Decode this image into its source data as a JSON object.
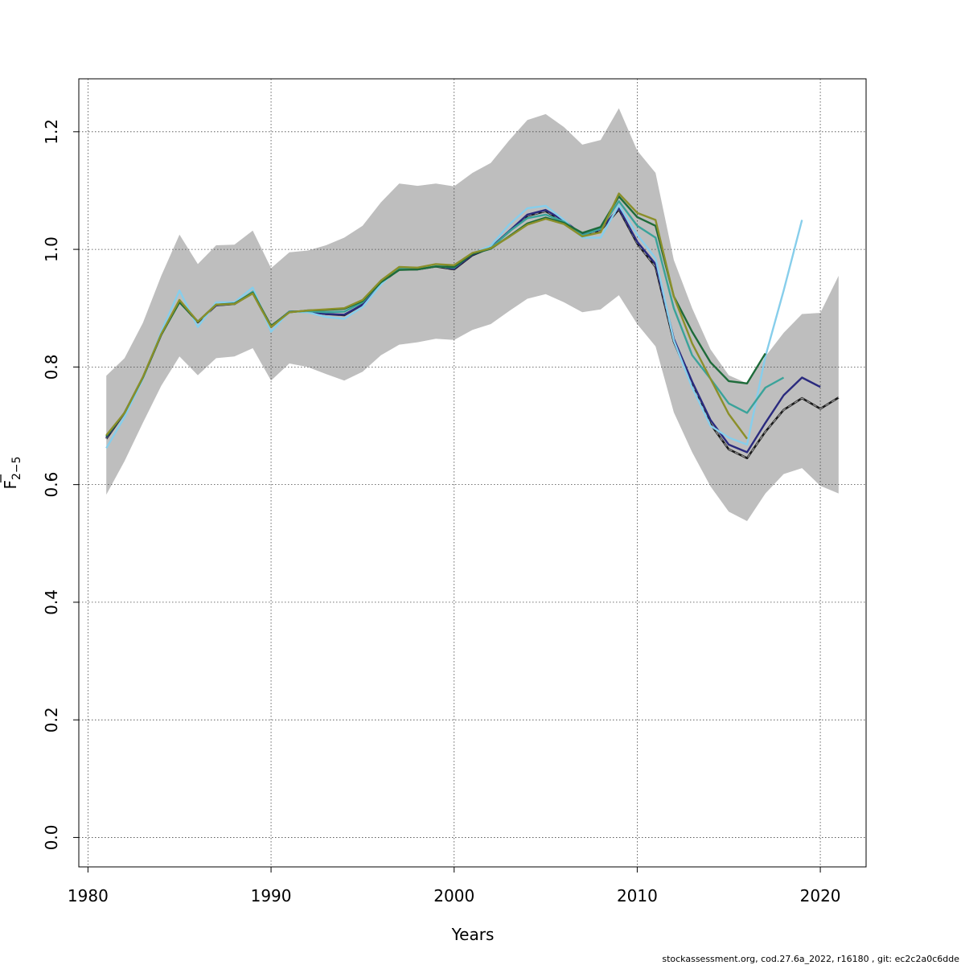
{
  "chart_data": {
    "type": "line",
    "xlabel": "Years",
    "ylabel_main": "F",
    "ylabel_sub": "2−5",
    "xlim": [
      1979.5,
      2022.5
    ],
    "ylim": [
      -0.05,
      1.29
    ],
    "xticks": [
      1980,
      1990,
      2000,
      2010,
      2020
    ],
    "yticks": [
      0.0,
      0.2,
      0.4,
      0.6,
      0.8,
      1.0,
      1.2
    ],
    "ytick_labels": [
      "0.0",
      "0.2",
      "0.4",
      "0.6",
      "0.8",
      "1.0",
      "1.2"
    ],
    "grid": true,
    "band_color": "#bebebe",
    "confidence_band": {
      "x": [
        1981,
        1982,
        1983,
        1984,
        1985,
        1986,
        1987,
        1988,
        1989,
        1990,
        1991,
        1992,
        1993,
        1994,
        1995,
        1996,
        1997,
        1998,
        1999,
        2000,
        2001,
        2002,
        2003,
        2004,
        2005,
        2006,
        2007,
        2008,
        2009,
        2010,
        2011,
        2012,
        2013,
        2014,
        2015,
        2016,
        2017,
        2018,
        2019,
        2020,
        2021
      ],
      "upper": [
        0.785,
        0.815,
        0.875,
        0.955,
        1.025,
        0.975,
        1.007,
        1.008,
        1.032,
        0.968,
        0.995,
        0.998,
        1.007,
        1.02,
        1.04,
        1.08,
        1.112,
        1.108,
        1.112,
        1.107,
        1.13,
        1.147,
        1.185,
        1.22,
        1.23,
        1.208,
        1.178,
        1.186,
        1.24,
        1.168,
        1.13,
        0.982,
        0.9,
        0.83,
        0.786,
        0.772,
        0.818,
        0.858,
        0.89,
        0.892,
        0.955
      ],
      "lower": [
        0.583,
        0.64,
        0.705,
        0.768,
        0.818,
        0.786,
        0.815,
        0.818,
        0.832,
        0.777,
        0.806,
        0.8,
        0.788,
        0.777,
        0.792,
        0.82,
        0.838,
        0.842,
        0.848,
        0.846,
        0.863,
        0.873,
        0.895,
        0.916,
        0.924,
        0.91,
        0.893,
        0.898,
        0.922,
        0.873,
        0.835,
        0.723,
        0.655,
        0.597,
        0.554,
        0.538,
        0.585,
        0.618,
        0.628,
        0.598,
        0.585
      ]
    },
    "series": [
      {
        "color": "#333333",
        "dashed": true,
        "x": [
          1981,
          1982,
          1983,
          1984,
          1985,
          1986,
          1987,
          1988,
          1989,
          1990,
          1991,
          1992,
          1993,
          1994,
          1995,
          1996,
          1997,
          1998,
          1999,
          2000,
          2001,
          2002,
          2003,
          2004,
          2005,
          2006,
          2007,
          2008,
          2009,
          2010,
          2011,
          2012,
          2013,
          2014,
          2015,
          2016,
          2017,
          2018,
          2019,
          2020,
          2021
        ],
        "values": [
          0.678,
          0.722,
          0.782,
          0.855,
          0.912,
          0.876,
          0.905,
          0.907,
          0.926,
          0.868,
          0.894,
          0.894,
          0.89,
          0.888,
          0.906,
          0.943,
          0.966,
          0.966,
          0.971,
          0.966,
          0.99,
          1.003,
          1.03,
          1.057,
          1.065,
          1.047,
          1.023,
          1.032,
          1.068,
          1.01,
          0.97,
          0.843,
          0.77,
          0.703,
          0.66,
          0.645,
          0.69,
          0.727,
          0.747,
          0.729,
          0.748
        ]
      },
      {
        "color": "#2a2a7e",
        "dashed": false,
        "x": [
          1981,
          1982,
          1983,
          1984,
          1985,
          1986,
          1987,
          1988,
          1989,
          1990,
          1991,
          1992,
          1993,
          1994,
          1995,
          1996,
          1997,
          1998,
          1999,
          2000,
          2001,
          2002,
          2003,
          2004,
          2005,
          2006,
          2007,
          2008,
          2009,
          2010,
          2011,
          2012,
          2013,
          2014,
          2015,
          2016,
          2017,
          2018,
          2019,
          2020
        ],
        "values": [
          0.68,
          0.722,
          0.782,
          0.855,
          0.913,
          0.877,
          0.905,
          0.907,
          0.927,
          0.869,
          0.894,
          0.894,
          0.89,
          0.889,
          0.906,
          0.944,
          0.966,
          0.967,
          0.972,
          0.967,
          0.991,
          1.003,
          1.031,
          1.059,
          1.067,
          1.049,
          1.025,
          1.034,
          1.07,
          1.013,
          0.975,
          0.848,
          0.775,
          0.71,
          0.668,
          0.655,
          0.705,
          0.752,
          0.782,
          0.766
        ]
      },
      {
        "color": "#87ceeb",
        "dashed": false,
        "x": [
          1981,
          1982,
          1983,
          1984,
          1985,
          1986,
          1987,
          1988,
          1989,
          1990,
          1991,
          1992,
          1993,
          1994,
          1995,
          1996,
          1997,
          1998,
          1999,
          2000,
          2001,
          2002,
          2003,
          2004,
          2005,
          2006,
          2007,
          2008,
          2009,
          2010,
          2011,
          2012,
          2013,
          2014,
          2015,
          2016,
          2017,
          2018,
          2019
        ],
        "values": [
          0.662,
          0.715,
          0.78,
          0.86,
          0.93,
          0.868,
          0.91,
          0.91,
          0.935,
          0.86,
          0.894,
          0.893,
          0.885,
          0.882,
          0.902,
          0.94,
          0.97,
          0.968,
          0.972,
          0.97,
          0.993,
          1.006,
          1.042,
          1.07,
          1.074,
          1.05,
          1.02,
          1.02,
          1.075,
          1.025,
          0.985,
          0.845,
          0.765,
          0.7,
          0.68,
          0.668,
          0.818,
          0.93,
          1.05
        ]
      },
      {
        "color": "#3aa39a",
        "dashed": false,
        "x": [
          1981,
          1982,
          1983,
          1984,
          1985,
          1986,
          1987,
          1988,
          1989,
          1990,
          1991,
          1992,
          1993,
          1994,
          1995,
          1996,
          1997,
          1998,
          1999,
          2000,
          2001,
          2002,
          2003,
          2004,
          2005,
          2006,
          2007,
          2008,
          2009,
          2010,
          2011,
          2012,
          2013,
          2014,
          2015,
          2016,
          2017,
          2018
        ],
        "values": [
          0.682,
          0.722,
          0.782,
          0.855,
          0.912,
          0.877,
          0.906,
          0.907,
          0.928,
          0.869,
          0.894,
          0.895,
          0.893,
          0.894,
          0.91,
          0.944,
          0.967,
          0.966,
          0.971,
          0.969,
          0.993,
          1.002,
          1.03,
          1.053,
          1.059,
          1.047,
          1.024,
          1.035,
          1.082,
          1.04,
          1.02,
          0.9,
          0.82,
          0.78,
          0.738,
          0.722,
          0.765,
          0.782
        ]
      },
      {
        "color": "#1e6b3a",
        "dashed": false,
        "x": [
          1981,
          1982,
          1983,
          1984,
          1985,
          1986,
          1987,
          1988,
          1989,
          1990,
          1991,
          1992,
          1993,
          1994,
          1995,
          1996,
          1997,
          1998,
          1999,
          2000,
          2001,
          2002,
          2003,
          2004,
          2005,
          2006,
          2007,
          2008,
          2009,
          2010,
          2011,
          2012,
          2013,
          2014,
          2015,
          2016,
          2017
        ],
        "values": [
          0.682,
          0.722,
          0.782,
          0.855,
          0.91,
          0.877,
          0.906,
          0.908,
          0.926,
          0.87,
          0.893,
          0.896,
          0.897,
          0.899,
          0.912,
          0.944,
          0.965,
          0.966,
          0.971,
          0.97,
          0.992,
          1.001,
          1.022,
          1.044,
          1.054,
          1.045,
          1.028,
          1.038,
          1.09,
          1.055,
          1.04,
          0.92,
          0.86,
          0.808,
          0.776,
          0.772,
          0.823
        ]
      },
      {
        "color": "#8b8f2a",
        "dashed": false,
        "x": [
          1981,
          1982,
          1983,
          1984,
          1985,
          1986,
          1987,
          1988,
          1989,
          1990,
          1991,
          1992,
          1993,
          1994,
          1995,
          1996,
          1997,
          1998,
          1999,
          2000,
          2001,
          2002,
          2003,
          2004,
          2005,
          2006,
          2007,
          2008,
          2009,
          2010,
          2011,
          2012,
          2013,
          2014,
          2015,
          2016
        ],
        "values": [
          0.684,
          0.722,
          0.783,
          0.856,
          0.914,
          0.877,
          0.906,
          0.907,
          0.925,
          0.868,
          0.893,
          0.896,
          0.898,
          0.9,
          0.914,
          0.947,
          0.97,
          0.969,
          0.975,
          0.973,
          0.994,
          1.002,
          1.021,
          1.042,
          1.052,
          1.043,
          1.022,
          1.029,
          1.095,
          1.062,
          1.05,
          0.92,
          0.84,
          0.78,
          0.72,
          0.678
        ]
      }
    ]
  },
  "footer": {
    "credit": "stockassessment.org, cod.27.6a_2022, r16180 , git: ec2c2a0c6dde"
  }
}
